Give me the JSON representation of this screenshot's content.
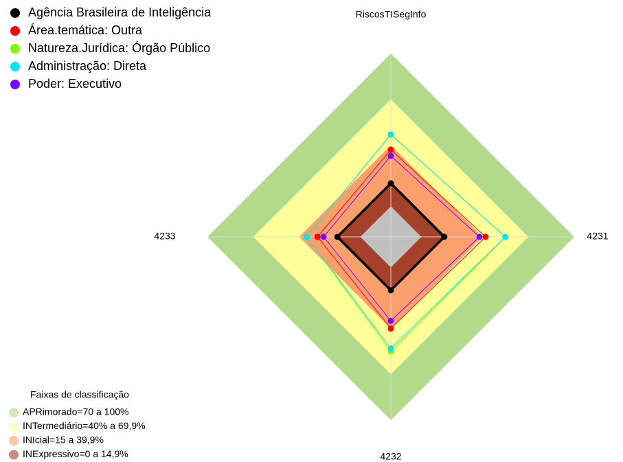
{
  "chart_data": {
    "type": "radar",
    "categories": [
      "RiscosTISegInfo",
      "4231",
      "4232",
      "4233"
    ],
    "ylim": [
      -20,
      100
    ],
    "series": [
      {
        "name": "Agência Brasileira de Inteligência",
        "color": "#000000",
        "values": [
          15,
          15,
          15,
          15
        ]
      },
      {
        "name": "Área.temática: Outra",
        "color": "#ff0000",
        "values": [
          37,
          42,
          40,
          28
        ]
      },
      {
        "name": "Natureza.Jurídica: Órgão Público",
        "color": "#7cfc00",
        "values": [
          47,
          55,
          55,
          35
        ]
      },
      {
        "name": "Administração: Direta",
        "color": "#00e5ee",
        "values": [
          47,
          55,
          53,
          35
        ]
      },
      {
        "name": "Poder: Executivo",
        "color": "#8000ff",
        "values": [
          33,
          38,
          35,
          24
        ]
      }
    ],
    "band_legend_title": "Faixas de classificação",
    "bands": [
      {
        "label": "APRimorado=70 a 100%",
        "from": 70,
        "to": 100,
        "color": "#b3d98a"
      },
      {
        "label": "INTermediário=40% a 69,9%",
        "from": 40,
        "to": 70,
        "color": "#ffff99"
      },
      {
        "label": "INIcial=15 a 39,9%",
        "from": 15,
        "to": 40,
        "color": "#fba06d"
      },
      {
        "label": "INExpressivo=0 a 14,9%",
        "from": 0,
        "to": 15,
        "color": "#a5402b"
      }
    ]
  }
}
